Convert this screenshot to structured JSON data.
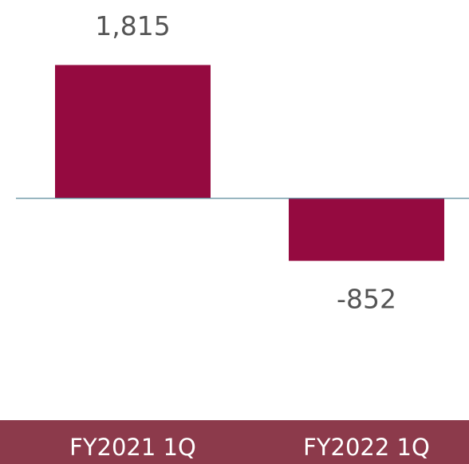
{
  "chart_data": {
    "type": "bar",
    "categories": [
      "FY2021 1Q",
      "FY2022 1Q"
    ],
    "values": [
      1815,
      -852
    ],
    "value_labels": [
      "1,815",
      "-852"
    ],
    "color": "#950a40",
    "ylim": [
      -2000,
      2700
    ]
  }
}
